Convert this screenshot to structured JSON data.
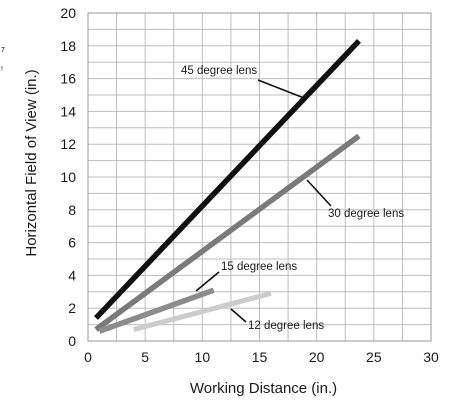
{
  "page": {
    "edge_marks": [
      "7",
      "!"
    ]
  },
  "chart_data": {
    "type": "line",
    "title": "",
    "xlabel": "Working Distance (in.)",
    "ylabel": "Horizontal Field of View (in.)",
    "xlim": [
      0,
      30
    ],
    "ylim": [
      0,
      20
    ],
    "xticks": [
      0,
      5,
      10,
      15,
      20,
      25,
      30
    ],
    "yticks": [
      0,
      2,
      4,
      6,
      8,
      10,
      12,
      14,
      16,
      18,
      20
    ],
    "grid": true,
    "legend": "none",
    "series": [
      {
        "name": "45 degree lens",
        "color": "#111111",
        "x": [
          0.7,
          23.7
        ],
        "y": [
          1.4,
          18.3
        ]
      },
      {
        "name": "30 degree lens",
        "color": "#7a7a7a",
        "x": [
          0.7,
          23.7
        ],
        "y": [
          0.7,
          12.5
        ]
      },
      {
        "name": "15 degree lens",
        "color": "#8c8c8c",
        "x": [
          1.0,
          11.0
        ],
        "y": [
          0.6,
          3.1
        ]
      },
      {
        "name": "12 degree lens",
        "color": "#cccccc",
        "x": [
          4.0,
          16.0
        ],
        "y": [
          0.7,
          2.9
        ]
      }
    ]
  }
}
